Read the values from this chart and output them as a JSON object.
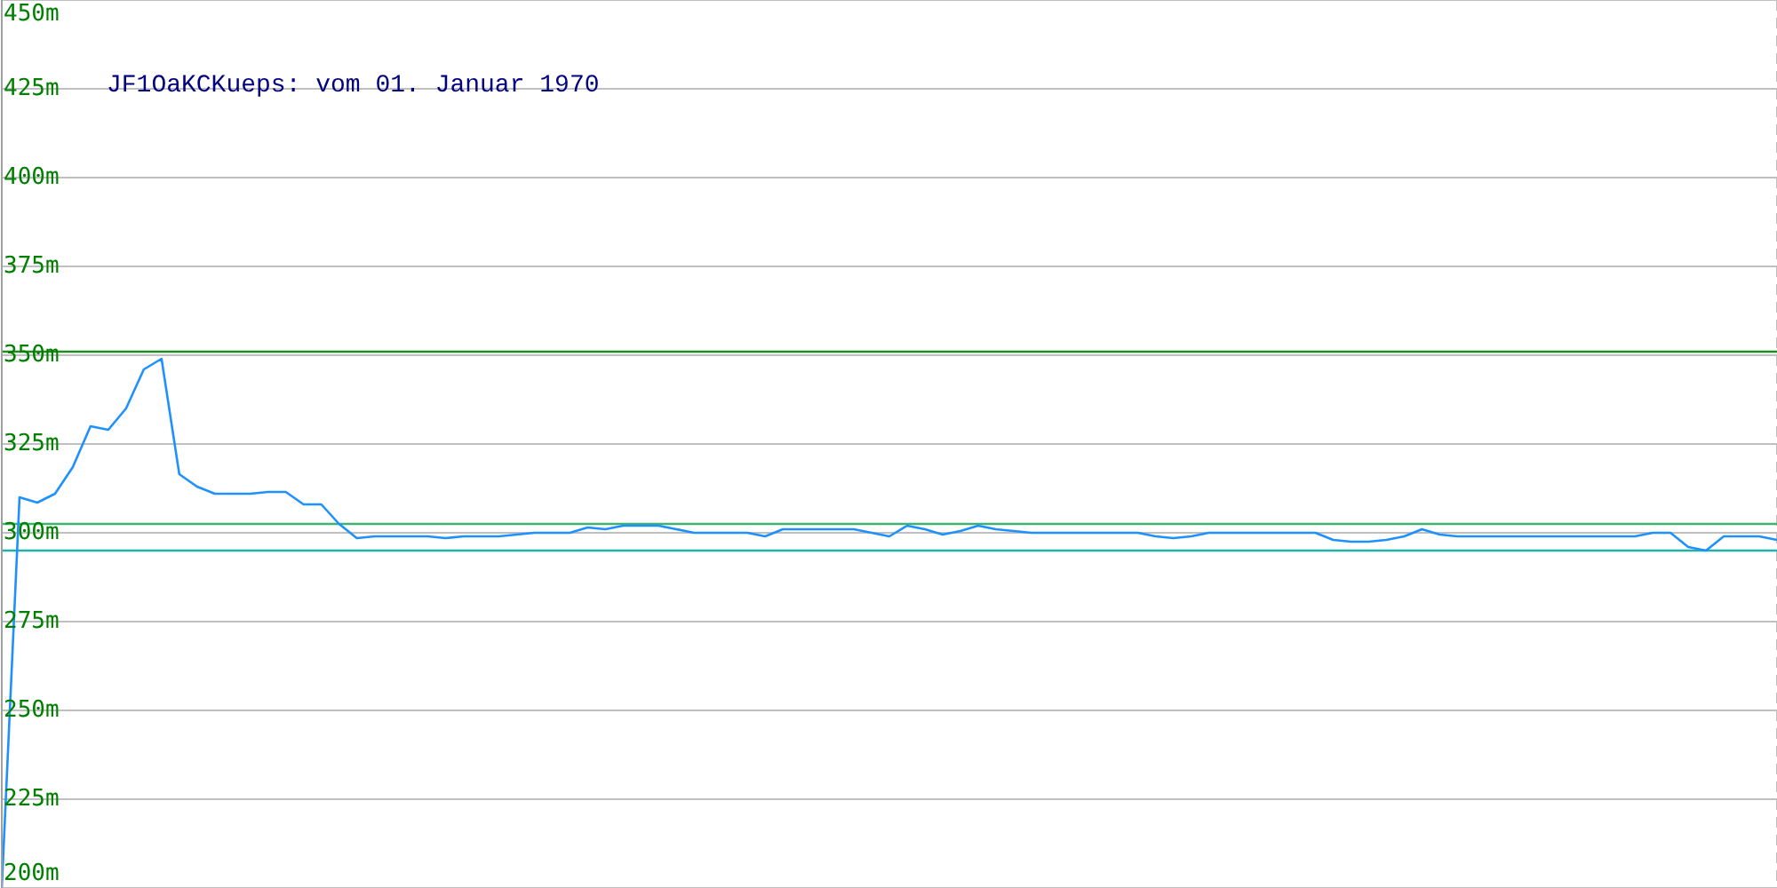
{
  "chart_data": {
    "type": "line",
    "title": "JF1OaKCKueps: vom 01. Januar 1970",
    "categories": [
      null,
      null,
      null,
      null,
      null,
      null,
      null,
      null,
      null,
      null,
      null,
      null,
      null,
      null,
      null,
      null,
      null,
      null,
      null,
      null,
      null,
      null,
      null,
      null,
      null,
      null,
      null,
      null,
      null,
      null,
      null,
      null,
      null,
      null,
      null,
      null,
      null,
      null,
      null,
      null,
      null,
      null,
      null,
      null,
      null,
      null,
      null,
      null,
      null,
      null,
      null,
      null,
      null,
      null,
      null,
      null,
      null,
      null,
      null,
      null,
      null,
      null,
      null,
      null,
      null,
      null,
      null,
      null,
      null,
      null,
      null,
      null,
      null,
      null,
      null,
      null,
      null,
      null,
      null,
      null,
      null,
      null,
      null,
      null,
      null,
      null,
      null,
      null,
      null,
      null,
      null,
      null,
      null,
      null,
      null,
      null,
      null,
      null,
      null,
      null,
      null
    ],
    "series": [
      {
        "color": "#1e90ff",
        "values": [
          200,
          310,
          308.5,
          311,
          318.5,
          330,
          329,
          335,
          346,
          349,
          316.5,
          313,
          311,
          311,
          311,
          311.5,
          311.5,
          308,
          308,
          302.5,
          298.5,
          299,
          299,
          299,
          299,
          298.5,
          299,
          299,
          299,
          299.5,
          300,
          300,
          300,
          301.5,
          301,
          302,
          302,
          302,
          301,
          300,
          300,
          300,
          300,
          299,
          301,
          301,
          301,
          301,
          301,
          300,
          299,
          302,
          301,
          299.5,
          300.5,
          302,
          301,
          300.5,
          300,
          300,
          300,
          300,
          300,
          300,
          300,
          299,
          298.5,
          299,
          300,
          300,
          300,
          300,
          300,
          300,
          300,
          298,
          297.5,
          297.5,
          298,
          299,
          301,
          299.5,
          299,
          299,
          299,
          299,
          299,
          299,
          299,
          299,
          299,
          299,
          299,
          300,
          300,
          296,
          295,
          299,
          299,
          299,
          298
        ]
      }
    ],
    "ylim": [
      200,
      450
    ],
    "yticks": [
      {
        "value": 200,
        "label": "200m"
      },
      {
        "value": 225,
        "label": "225m"
      },
      {
        "value": 250,
        "label": "250m"
      },
      {
        "value": 275,
        "label": "275m"
      },
      {
        "value": 300,
        "label": "300m"
      },
      {
        "value": 325,
        "label": "325m"
      },
      {
        "value": 350,
        "label": "350m"
      },
      {
        "value": 375,
        "label": "375m"
      },
      {
        "value": 400,
        "label": "400m"
      },
      {
        "value": 425,
        "label": "425m"
      },
      {
        "value": 450,
        "label": "450m"
      }
    ],
    "grid": true,
    "marker": "none",
    "line_style": "solid",
    "ref_lines": [
      {
        "axis": "y",
        "value": 351,
        "color": "#228b22"
      },
      {
        "axis": "y",
        "value": 302.5,
        "color": "#3cb371"
      },
      {
        "axis": "y",
        "value": 295,
        "color": "#20b2aa"
      }
    ]
  }
}
